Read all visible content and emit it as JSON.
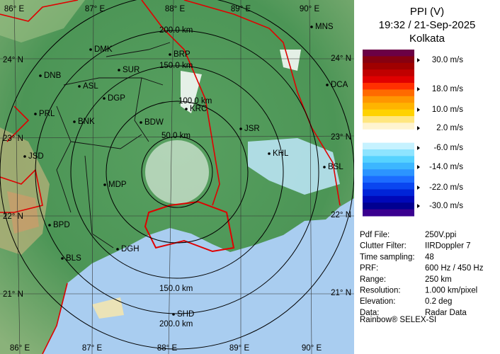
{
  "header": {
    "title": "PPI (V)",
    "datetime": "19:32 / 21-Sep-2025",
    "location": "Kolkata"
  },
  "legend": {
    "labels": [
      "30.0 m/s",
      "18.0 m/s",
      "10.0 m/s",
      "2.0 m/s",
      "-6.0 m/s",
      "-14.0 m/s",
      "-22.0 m/s",
      "-30.0 m/s"
    ]
  },
  "info": [
    [
      "Pdf File:",
      "250V.ppi"
    ],
    [
      "Clutter Filter:",
      "IIRDoppler 7"
    ],
    [
      "Time sampling:",
      "48"
    ],
    [
      "PRF:",
      "600 Hz / 450 Hz"
    ],
    [
      "Range:",
      "250 km"
    ],
    [
      "Resolution:",
      "1.000 km/pixel"
    ],
    [
      "Elevation:",
      "0.2 deg"
    ],
    [
      "Data:",
      "Radar Data"
    ]
  ],
  "footer": "Rainbow® SELEX-SI",
  "map": {
    "longitudes": [
      "86° E",
      "87° E",
      "88° E",
      "89° E",
      "90° E"
    ],
    "latitudes": [
      "24° N",
      "23° N",
      "22° N",
      "21° N"
    ],
    "rings": [
      "50.0 km",
      "100.0 km",
      "150.0 km",
      "200.0 km"
    ],
    "places": [
      "MNS",
      "DMK",
      "BRP",
      "SUR",
      "DNB",
      "ASL",
      "DCA",
      "DGP",
      "KRC",
      "PRL",
      "BNK",
      "BDW",
      "JSR",
      "KHL",
      "JSD",
      "BSL",
      "MDP",
      "BPD",
      "DGH",
      "BLS",
      "SHD"
    ]
  }
}
